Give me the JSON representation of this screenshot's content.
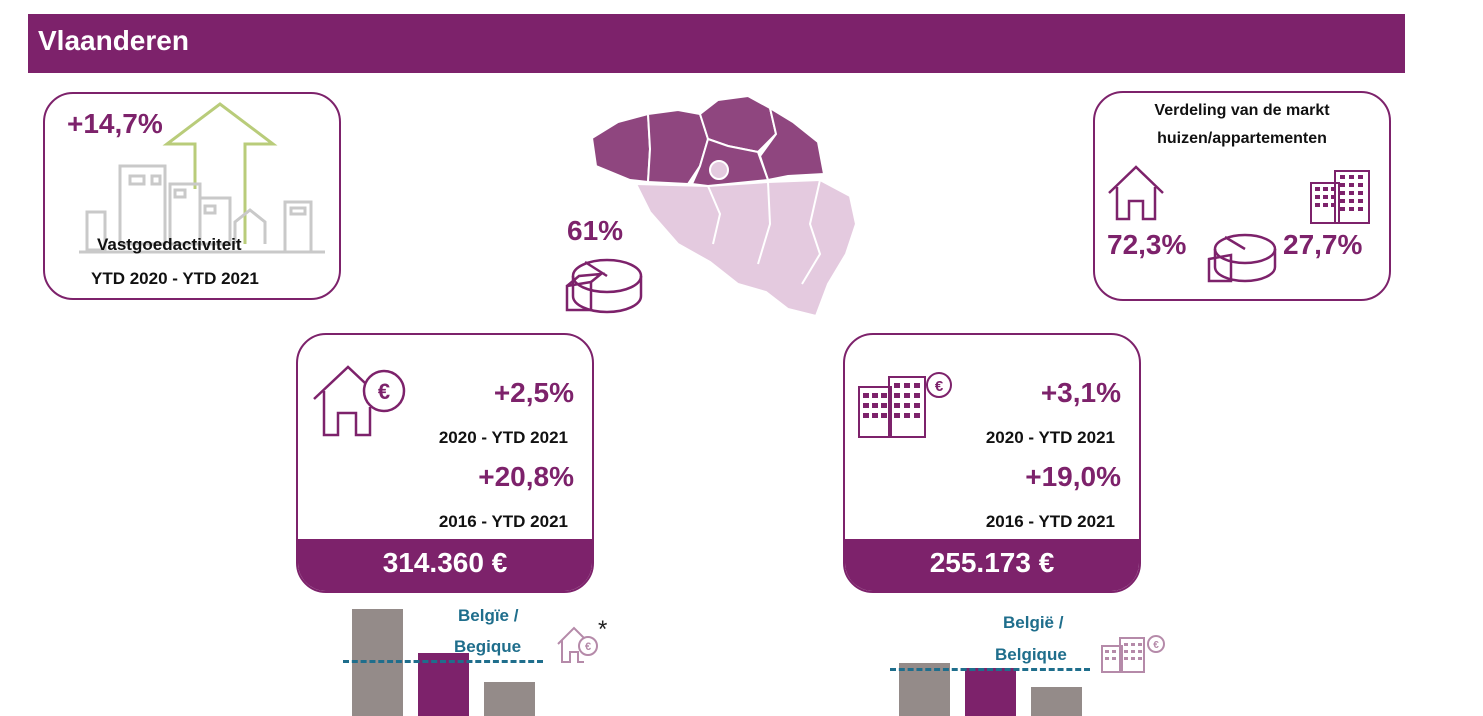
{
  "header": {
    "title": "Vlaanderen"
  },
  "activity_card": {
    "growth": "+14,7%",
    "label_line1": "Vastgoedactiviteit",
    "label_line2": "YTD 2020 - YTD 2021"
  },
  "map": {
    "share": "61%"
  },
  "distribution_card": {
    "title_line1": "Verdeling van de markt",
    "title_line2": "huizen/appartementen",
    "houses_share": "72,3%",
    "apartments_share": "27,7%"
  },
  "house_price_card": {
    "change_short": "+2,5%",
    "period_short": "2020 - YTD 2021",
    "change_long": "+20,8%",
    "period_long": "2016 - YTD 2021",
    "price": "314.360 €"
  },
  "apartment_price_card": {
    "change_short": "+3,1%",
    "period_short": "2020 - YTD 2021",
    "change_long": "+19,0%",
    "period_long": "2016 - YTD 2021",
    "price": "255.173 €"
  },
  "house_compare": {
    "label_line1": "Belgïe /",
    "label_line2": "Begique",
    "asterisk": "*",
    "colors": {
      "other": "#948b89",
      "flanders": "#7d226b",
      "belgium_line": "#1f6e8c"
    }
  },
  "apartment_compare": {
    "label_line1": "België /",
    "label_line2": "Belgique"
  }
}
